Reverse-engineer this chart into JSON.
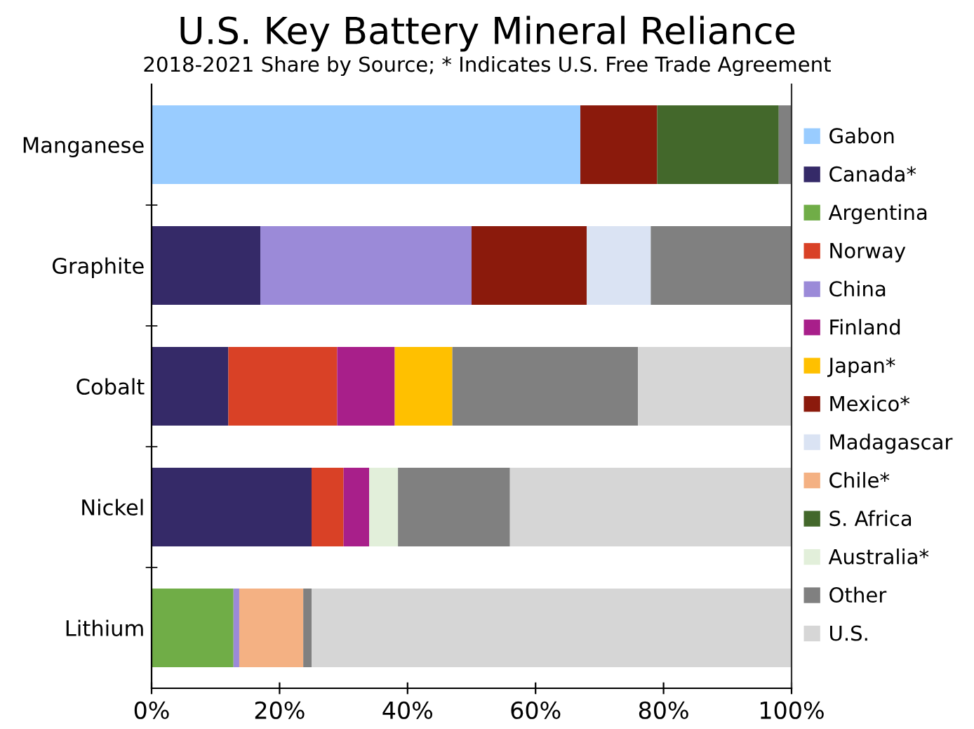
{
  "chart_data": {
    "type": "bar",
    "orientation": "horizontal",
    "stacked": true,
    "title": "U.S. Key Battery Mineral Reliance",
    "subtitle": "2018-2021 Share by Source; * Indicates U.S. Free Trade Agreement",
    "categories": [
      "Manganese",
      "Graphite",
      "Cobalt",
      "Nickel",
      "Lithium"
    ],
    "series": [
      {
        "name": "Gabon",
        "color": "#99ccff",
        "values": [
          67,
          0,
          0,
          0,
          0
        ]
      },
      {
        "name": "Canada*",
        "color": "#352a68",
        "values": [
          0,
          17,
          12,
          25,
          0
        ]
      },
      {
        "name": "Argentina",
        "color": "#70ad47",
        "values": [
          0,
          0,
          0,
          0,
          12.8
        ]
      },
      {
        "name": "Norway",
        "color": "#d94126",
        "values": [
          0,
          0,
          17,
          5,
          0
        ]
      },
      {
        "name": "China",
        "color": "#9b8ad8",
        "values": [
          0,
          33,
          0,
          0,
          0.9
        ]
      },
      {
        "name": "Finland",
        "color": "#a81f8a",
        "values": [
          0,
          0,
          9,
          4,
          0
        ]
      },
      {
        "name": "Japan*",
        "color": "#ffc000",
        "values": [
          0,
          0,
          9,
          0,
          0
        ]
      },
      {
        "name": "Mexico*",
        "color": "#8b1a0c",
        "values": [
          12,
          18,
          0,
          0,
          0
        ]
      },
      {
        "name": "Madagascar",
        "color": "#dae3f3",
        "values": [
          0,
          10,
          0,
          0,
          0
        ]
      },
      {
        "name": "Chile*",
        "color": "#f4b183",
        "values": [
          0,
          0,
          0,
          0,
          10
        ]
      },
      {
        "name": "S. Africa",
        "color": "#43682b",
        "values": [
          19,
          0,
          0,
          0,
          0
        ]
      },
      {
        "name": "Australia*",
        "color": "#e2efda",
        "values": [
          0,
          0,
          0,
          4.5,
          0
        ]
      },
      {
        "name": "Other",
        "color": "#808080",
        "values": [
          2,
          22,
          29,
          17.5,
          1.3
        ]
      },
      {
        "name": "U.S.",
        "color": "#d6d6d6",
        "values": [
          0,
          0,
          24,
          44,
          75
        ]
      }
    ],
    "xlim": [
      0,
      100
    ],
    "xticks": [
      {
        "value": 0,
        "label": "0%"
      },
      {
        "value": 20,
        "label": "20%"
      },
      {
        "value": 40,
        "label": "40%"
      },
      {
        "value": 60,
        "label": "60%"
      },
      {
        "value": 80,
        "label": "80%"
      },
      {
        "value": 100,
        "label": "100%"
      }
    ],
    "grid": false,
    "legend": "right"
  }
}
